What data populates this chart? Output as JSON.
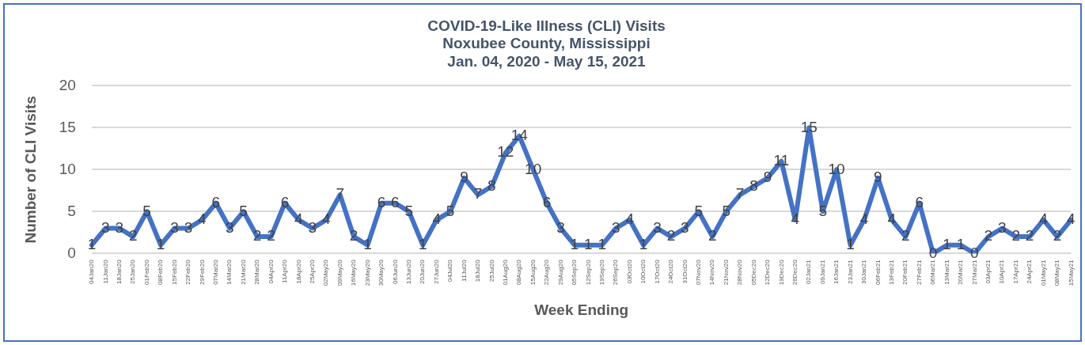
{
  "chart_data": {
    "type": "line",
    "title": "COVID-19-Like Illness (CLI) Visits",
    "subtitle": "Noxubee County, Mississippi\nJan. 04, 2020 - May 15, 2021",
    "xlabel": "Week Ending",
    "ylabel": "Number of CLI Visits",
    "categories": [
      "04Jan20",
      "11Jan20",
      "18Jan20",
      "25Jan20",
      "01Feb20",
      "08Feb20",
      "15Feb20",
      "22Feb20",
      "29Feb20",
      "07Mar20",
      "14Mar20",
      "21Mar20",
      "28Mar20",
      "04Apr20",
      "11Apr20",
      "18Apr20",
      "25Apr20",
      "02May20",
      "09May20",
      "16May20",
      "23May20",
      "30May20",
      "06Jun20",
      "13Jun20",
      "20Jun20",
      "27Jun20",
      "04Jul20",
      "11Jul20",
      "18Jul20",
      "25Jul20",
      "01Aug20",
      "08Aug20",
      "15Aug20",
      "22Aug20",
      "29Aug20",
      "05Sep20",
      "12Sep20",
      "19Sep20",
      "26Sep20",
      "03Oct20",
      "10Oct20",
      "17Oct20",
      "24Oct20",
      "31Oct20",
      "07Nov20",
      "14Nov20",
      "21Nov20",
      "28Nov20",
      "05Dec20",
      "12Dec20",
      "19Dec20",
      "26Dec20",
      "02Jan21",
      "09Jan21",
      "16Jan21",
      "23Jan21",
      "30Jan21",
      "06Feb21",
      "13Feb21",
      "20Feb21",
      "27Feb21",
      "06Mar21",
      "13Mar21",
      "20Mar21",
      "27Mar21",
      "03Apr21",
      "10Apr21",
      "17Apr21",
      "24Apr21",
      "01May21",
      "08May21",
      "15May21"
    ],
    "series": [
      {
        "color": "#4472c4",
        "values": [
          1,
          3,
          3,
          2,
          5,
          1,
          3,
          3,
          4,
          6,
          3,
          5,
          2,
          2,
          6,
          4,
          3,
          4,
          7,
          2,
          1,
          6,
          6,
          5,
          1,
          4,
          5,
          9,
          7,
          8,
          12,
          14,
          10,
          6,
          3,
          1,
          1,
          1,
          3,
          4,
          1,
          3,
          2,
          3,
          5,
          2,
          5,
          7,
          8,
          9,
          11,
          4,
          15,
          5,
          10,
          1,
          4,
          9,
          4,
          2,
          6,
          0,
          1,
          1,
          0,
          2,
          3,
          2,
          2,
          4,
          2,
          4
        ]
      }
    ],
    "ylim": [
      0,
      20
    ],
    "yticks": [
      0,
      5,
      10,
      15,
      20
    ],
    "grid": "y",
    "data_labels": true,
    "marker": "none",
    "line_style": "solid"
  }
}
